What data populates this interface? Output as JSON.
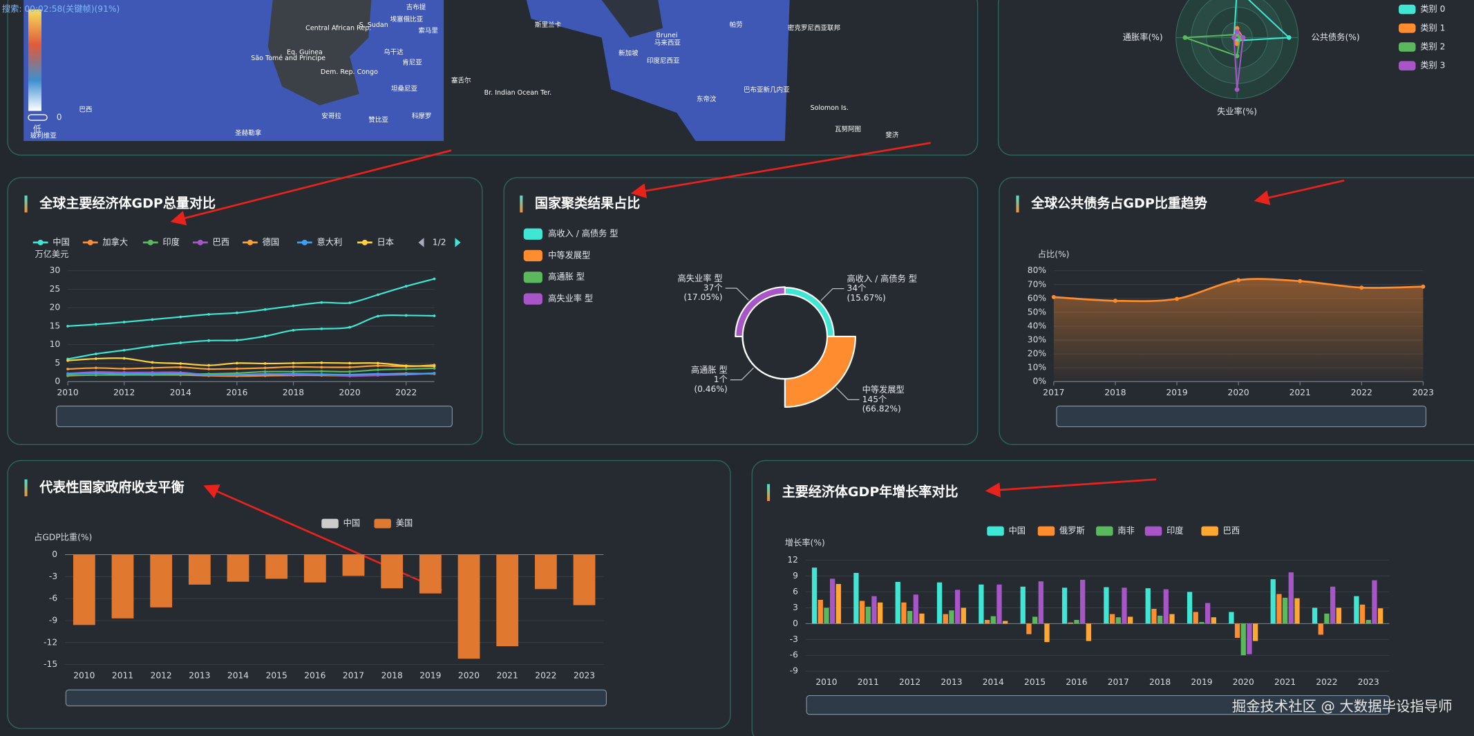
{
  "overlay_text": "搜索: 00:02:58(关键帧)(91%)",
  "watermark": "掘金技术社区 @ 大数据毕设指导师",
  "map": {
    "labels": [
      "São Tomé and Principe",
      "Eq. Guinea",
      "Central African Rep.",
      "S. Sudan",
      "Dem. Rep. Congo",
      "乌干达",
      "肯尼亚",
      "坦桑尼亚",
      "安哥拉",
      "赞比亚",
      "科摩罗",
      "塞舌尔",
      "索马里",
      "吉布提",
      "埃塞俄比亚",
      "Br. Indian Ocean Ter.",
      "斯里兰卡",
      "新加坡",
      "印度尼西亚",
      "马来西亚",
      "Brunei",
      "东帝汶",
      "巴布亚新几内亚",
      "帕劳",
      "密克罗尼西亚联邦",
      "Solomon Is.",
      "瓦努阿图",
      "斐济",
      "巴西",
      "圣赫勒拿",
      "玻利维亚"
    ],
    "visual_map_low": "低",
    "visual_map_min": 0
  },
  "chart_data": [
    {
      "type": "radar",
      "indicators": [
        null,
        "公共债务(%)",
        "失业率(%)",
        "通胀率(%)"
      ],
      "max": 1,
      "series": [
        {
          "name": "类别 0",
          "color": "#40e6d4",
          "values": [
            0.8,
            0.85,
            0.05,
            0.05
          ]
        },
        {
          "name": "类别 1",
          "color": "#ff8c2e",
          "values": [
            0.15,
            0.1,
            0.1,
            0.05
          ]
        },
        {
          "name": "类别 2",
          "color": "#5cb85c",
          "values": [
            0.05,
            0.05,
            0.3,
            0.85
          ]
        },
        {
          "name": "类别 3",
          "color": "#a855c8",
          "values": [
            0.1,
            0.1,
            0.85,
            0.05
          ]
        }
      ]
    },
    {
      "type": "line",
      "title": "全球主要经济体GDP总量对比",
      "y_label": "万亿美元",
      "legend_page": "1/2",
      "grid": true,
      "x": [
        2010,
        2011,
        2012,
        2013,
        2014,
        2015,
        2016,
        2017,
        2018,
        2019,
        2020,
        2021,
        2022,
        2023
      ],
      "xlim": [
        2010,
        2023
      ],
      "xticks": [
        2010,
        2012,
        2014,
        2016,
        2018,
        2020,
        2022
      ],
      "ylim": [
        0,
        30
      ],
      "yticks": [
        0,
        5,
        10,
        15,
        20,
        25,
        30
      ],
      "series": [
        {
          "name": "中国",
          "color": "#40e6d4",
          "values": [
            6.1,
            7.5,
            8.5,
            9.6,
            10.5,
            11.1,
            11.2,
            12.3,
            13.9,
            14.3,
            14.7,
            17.7,
            17.9,
            17.8
          ]
        },
        {
          "name": "加拿大",
          "color": "#ff8c2e",
          "values": [
            1.6,
            1.8,
            1.8,
            1.8,
            1.8,
            1.6,
            1.5,
            1.6,
            1.7,
            1.7,
            1.6,
            2.0,
            2.2,
            2.1
          ]
        },
        {
          "name": "印度",
          "color": "#5cb85c",
          "values": [
            1.7,
            1.8,
            1.8,
            1.9,
            2.0,
            2.1,
            2.3,
            2.7,
            2.7,
            2.8,
            2.7,
            3.2,
            3.4,
            3.6
          ]
        },
        {
          "name": "巴西",
          "color": "#a855c8",
          "values": [
            2.2,
            2.6,
            2.5,
            2.5,
            2.5,
            1.8,
            1.8,
            2.1,
            1.9,
            1.9,
            1.5,
            1.7,
            1.9,
            2.2
          ]
        },
        {
          "name": "德国",
          "color": "#ffa033",
          "values": [
            3.4,
            3.7,
            3.5,
            3.7,
            3.9,
            3.4,
            3.5,
            3.7,
            4.0,
            3.9,
            3.9,
            4.3,
            4.1,
            4.5
          ]
        },
        {
          "name": "意大利",
          "color": "#3a9ff5",
          "values": [
            2.1,
            2.3,
            2.1,
            2.1,
            2.2,
            1.8,
            1.9,
            2.0,
            2.1,
            2.0,
            1.9,
            2.1,
            2.0,
            2.3
          ]
        },
        {
          "name": "日本",
          "color": "#ffd23a",
          "values": [
            5.7,
            6.2,
            6.3,
            5.2,
            4.9,
            4.4,
            5.0,
            4.9,
            5.0,
            5.1,
            5.0,
            5.0,
            4.3,
            4.2
          ]
        },
        {
          "name": null,
          "color": "#40e6d4",
          "values": [
            15.0,
            15.5,
            16.1,
            16.8,
            17.5,
            18.2,
            18.6,
            19.5,
            20.5,
            21.4,
            21.3,
            23.5,
            25.8,
            27.8
          ]
        }
      ]
    },
    {
      "type": "pie",
      "rose_type": "area",
      "title": "国家聚类结果占比",
      "categories": [
        "高收入 / 高债务 型",
        "中等发展型",
        "高通胀 型",
        "高失业率 型"
      ],
      "colors": [
        "#40e6d4",
        "#ff8c2e",
        "#5cb85c",
        "#a855c8"
      ],
      "values": [
        34,
        145,
        1,
        37
      ],
      "value_labels": [
        "34个",
        "145个",
        "1个",
        "37个"
      ],
      "percent_labels": [
        "(15.67%)",
        "(66.82%)",
        "(0.46%)",
        "(17.05%)"
      ]
    },
    {
      "type": "line",
      "area": true,
      "title": "全球公共债务占GDP比重趋势",
      "y_label": "占比(%)",
      "grid": true,
      "x": [
        2017,
        2018,
        2019,
        2020,
        2021,
        2022,
        2023
      ],
      "xlim": [
        2017,
        2023
      ],
      "xticks": [
        2017,
        2018,
        2019,
        2020,
        2021,
        2022,
        2023
      ],
      "ylim": [
        0,
        80
      ],
      "yticks": [
        {
          "value": 0,
          "label": "0%"
        },
        {
          "value": 10,
          "label": "10%"
        },
        {
          "value": 20,
          "label": "20%"
        },
        {
          "value": 30,
          "label": "30%"
        },
        {
          "value": 40,
          "label": "40%"
        },
        {
          "value": 50,
          "label": "50%"
        },
        {
          "value": 60,
          "label": "60%"
        },
        {
          "value": 70,
          "label": "70%"
        },
        {
          "value": 80,
          "label": "80%"
        }
      ],
      "color": "#ff8c2e",
      "values": [
        61,
        58.3,
        59.7,
        73.2,
        72.5,
        67.8,
        68.5
      ]
    },
    {
      "type": "bar",
      "title": "代表性国家政府收支平衡",
      "y_label": "占GDP比重(%)",
      "grid": true,
      "categories": [
        "2010",
        "2011",
        "2012",
        "2013",
        "2014",
        "2015",
        "2016",
        "2017",
        "2018",
        "2019",
        "2020",
        "2021",
        "2022",
        "2023"
      ],
      "ylim": [
        -15,
        0
      ],
      "yticks": [
        0,
        -3,
        -6,
        -9,
        -12,
        -15
      ],
      "series": [
        {
          "name": "中国",
          "color": "#cccccc",
          "hidden": true
        },
        {
          "name": "美国",
          "color": "#e0782f",
          "values": [
            -9.6,
            -8.7,
            -7.2,
            -4.1,
            -3.7,
            -3.3,
            -3.8,
            -2.9,
            -4.6,
            -5.3,
            -14.2,
            -12.5,
            -4.7,
            -6.9
          ]
        }
      ]
    },
    {
      "type": "bar",
      "title": "主要经济体GDP年增长率对比",
      "y_label": "增长率(%)",
      "grid": true,
      "categories": [
        "2010",
        "2011",
        "2012",
        "2013",
        "2014",
        "2015",
        "2016",
        "2017",
        "2018",
        "2019",
        "2020",
        "2021",
        "2022",
        "2023"
      ],
      "ylim": [
        -9,
        12
      ],
      "yticks": [
        12,
        9,
        6,
        3,
        0,
        -3,
        -6,
        -9
      ],
      "series": [
        {
          "name": "中国",
          "color": "#40e6d4",
          "values": [
            10.6,
            9.6,
            7.9,
            7.8,
            7.4,
            7.0,
            6.8,
            6.9,
            6.7,
            6.0,
            2.2,
            8.4,
            3.0,
            5.2
          ]
        },
        {
          "name": "俄罗斯",
          "color": "#ff8c2e",
          "values": [
            4.5,
            4.3,
            4.0,
            1.8,
            0.7,
            -2.0,
            0.2,
            1.8,
            2.8,
            2.2,
            -2.7,
            5.6,
            -2.1,
            3.6
          ]
        },
        {
          "name": "南非",
          "color": "#5cb85c",
          "values": [
            3.0,
            3.2,
            2.4,
            2.5,
            1.4,
            1.3,
            0.7,
            1.2,
            1.5,
            0.3,
            -6.0,
            4.9,
            1.9,
            0.7
          ]
        },
        {
          "name": "印度",
          "color": "#a855c8",
          "values": [
            8.5,
            5.2,
            5.5,
            6.4,
            7.4,
            8.0,
            8.3,
            6.8,
            6.5,
            3.9,
            -5.8,
            9.7,
            7.0,
            8.2
          ]
        },
        {
          "name": "巴西",
          "color": "#ffa733",
          "values": [
            7.5,
            4.0,
            1.9,
            3.0,
            0.5,
            -3.5,
            -3.3,
            1.3,
            1.8,
            1.2,
            -3.3,
            4.8,
            3.0,
            2.9
          ]
        }
      ]
    }
  ]
}
